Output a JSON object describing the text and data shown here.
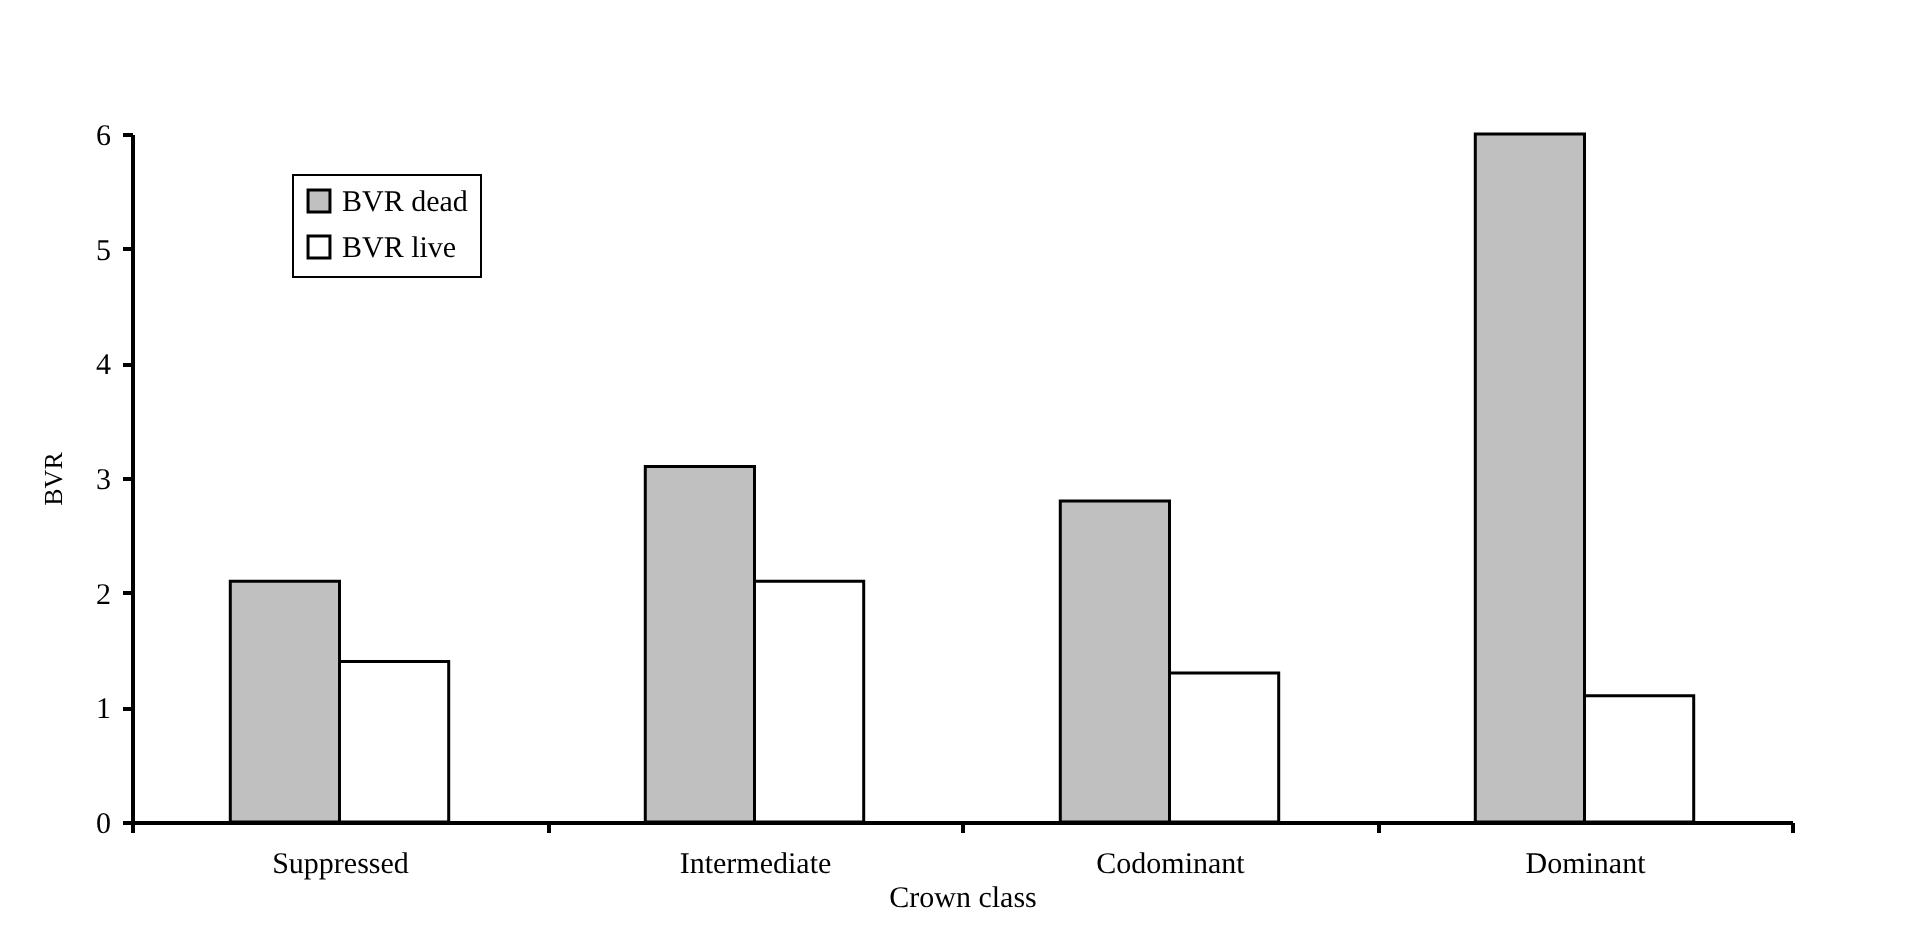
{
  "chart_data": {
    "type": "bar",
    "xlabel": "Crown class",
    "ylabel": "BVR",
    "categories": [
      "Suppressed",
      "Intermediate",
      "Codominant",
      "Dominant"
    ],
    "series": [
      {
        "name": "BVR dead",
        "color": "#c0c0c0",
        "values": [
          2.1,
          3.1,
          2.8,
          6.0
        ]
      },
      {
        "name": "BVR live",
        "color": "#ffffff",
        "values": [
          1.4,
          2.1,
          1.3,
          1.1
        ]
      }
    ],
    "ylim": [
      0,
      6
    ],
    "yticks": [
      0,
      1,
      2,
      3,
      4,
      5,
      6
    ],
    "grid": false,
    "legend": "top left"
  }
}
